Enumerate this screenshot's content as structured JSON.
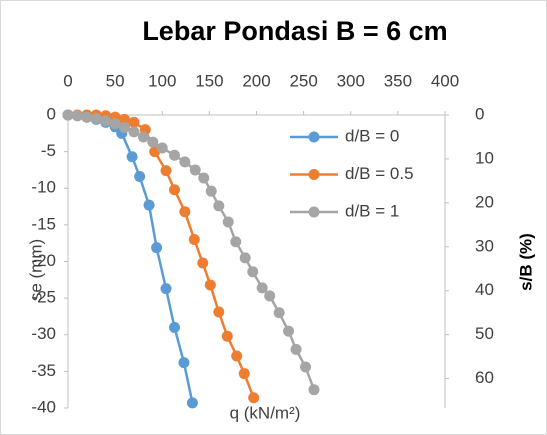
{
  "chart_data": {
    "type": "scatter",
    "title": "Lebar Pondasi B = 6 cm",
    "x_label": "q (kN/m²)",
    "y_label": "se (mm)",
    "y2_label": "s/B (%)",
    "xlim": [
      0,
      400
    ],
    "xticks": [
      0,
      50,
      100,
      150,
      200,
      250,
      300,
      350,
      400
    ],
    "ylim": [
      -40,
      0
    ],
    "yticks": [
      0,
      -5,
      -10,
      -15,
      -20,
      -25,
      -30,
      -35,
      -40
    ],
    "y2lim": [
      66.7,
      0
    ],
    "y2ticks": [
      0,
      10,
      20,
      30,
      40,
      50,
      60
    ],
    "legend": "right",
    "grid": false,
    "series": [
      {
        "name": "d/B = 0",
        "color": "#5b9bd5",
        "x": [
          0,
          10,
          20,
          30,
          40,
          50,
          57,
          68,
          76,
          86,
          94,
          104,
          113,
          123,
          132
        ],
        "values": [
          0,
          -0.1,
          -0.3,
          -0.6,
          -1,
          -1.6,
          -2.5,
          -5.7,
          -8.4,
          -12.3,
          -18.1,
          -23.7,
          -29,
          -33.8,
          -39.3
        ]
      },
      {
        "name": "d/B = 0.5",
        "color": "#ed7d31",
        "x": [
          0,
          10,
          20,
          30,
          40,
          50,
          60,
          70,
          82,
          92,
          104,
          113,
          124,
          134,
          143,
          151,
          160,
          169,
          179,
          187,
          197
        ],
        "values": [
          0,
          0,
          0,
          0,
          -0.1,
          -0.3,
          -0.6,
          -1,
          -2,
          -5,
          -7.6,
          -10.2,
          -13.2,
          -17,
          -20.2,
          -23.2,
          -26.9,
          -30.2,
          -32.9,
          -35.3,
          -38.6
        ]
      },
      {
        "name": "d/B = 1",
        "color": "#a5a5a5",
        "x": [
          0,
          10,
          20,
          30,
          40,
          50,
          60,
          70,
          80,
          90,
          100,
          113,
          124,
          135,
          144,
          152,
          160,
          170,
          178,
          188,
          196,
          206,
          214,
          224,
          234,
          242,
          252,
          261
        ],
        "values": [
          0,
          -0.1,
          -0.3,
          -0.5,
          -0.8,
          -1.2,
          -1.7,
          -2.3,
          -3,
          -3.7,
          -4.5,
          -5.5,
          -6.4,
          -7.5,
          -8.6,
          -10.4,
          -12.4,
          -14.6,
          -17.3,
          -19.5,
          -21.4,
          -23.6,
          -24.7,
          -27,
          -29.5,
          -32,
          -34.4,
          -37.5
        ]
      }
    ]
  }
}
